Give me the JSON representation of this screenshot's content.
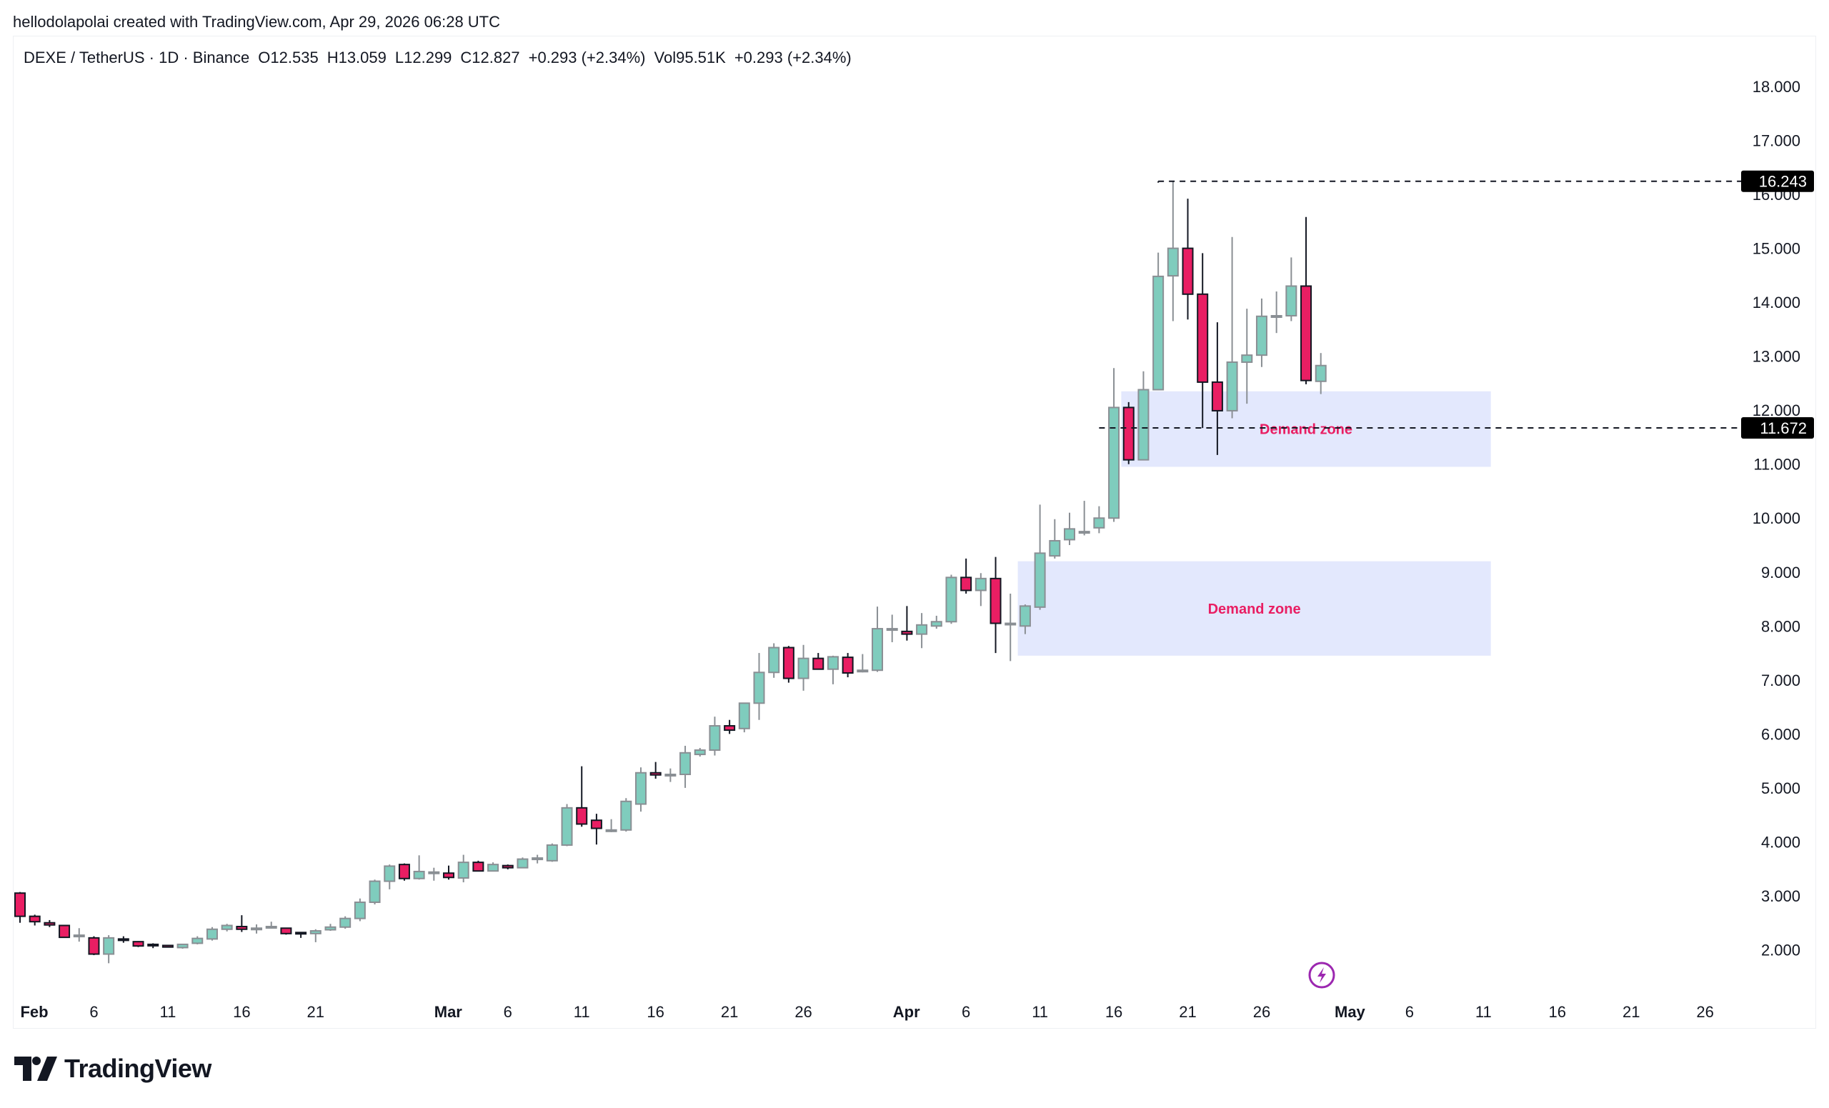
{
  "attribution": "hellodolapolai created with TradingView.com, Apr 29, 2026 06:28 UTC",
  "legend": {
    "symbol": "DEXE / TetherUS · 1D · Binance",
    "open": "O12.535",
    "high": "H13.059",
    "low": "L12.299",
    "close": "C12.827",
    "change": "+0.293 (+2.34%)",
    "volume": "Vol95.51K",
    "volume_change": "+0.293 (+2.34%)"
  },
  "colors": {
    "up": "#7fccbd",
    "up_border": "#8a8f94",
    "down": "#e91e63",
    "down_border": "#131722",
    "zone_fill": "#e3e8fd",
    "zone_text": "#e91e63",
    "event_icon": "#9c27b0"
  },
  "logo": {
    "text": "TradingView"
  },
  "chart_data": {
    "type": "candlestick",
    "title": "DEXE / TetherUS · 1D · Binance",
    "xlabel": "",
    "ylabel": "",
    "ylim": [
      1.0,
      18.8
    ],
    "y_ticks": [
      "18.000",
      "17.000",
      "16.000",
      "15.000",
      "14.000",
      "13.000",
      "12.000",
      "11.000",
      "10.000",
      "9.000",
      "8.000",
      "7.000",
      "6.000",
      "5.000",
      "4.000",
      "3.000",
      "2.000"
    ],
    "x_ticks": [
      {
        "label": "Feb",
        "day": 0,
        "major": true
      },
      {
        "label": "6",
        "day": 5
      },
      {
        "label": "11",
        "day": 10
      },
      {
        "label": "16",
        "day": 15
      },
      {
        "label": "21",
        "day": 20
      },
      {
        "label": "Mar",
        "day": 28,
        "major": true
      },
      {
        "label": "6",
        "day": 33
      },
      {
        "label": "11",
        "day": 38
      },
      {
        "label": "16",
        "day": 43
      },
      {
        "label": "21",
        "day": 48
      },
      {
        "label": "26",
        "day": 53
      },
      {
        "label": "Apr",
        "day": 59,
        "major": true
      },
      {
        "label": "6",
        "day": 64
      },
      {
        "label": "11",
        "day": 69
      },
      {
        "label": "16",
        "day": 74
      },
      {
        "label": "21",
        "day": 79
      },
      {
        "label": "26",
        "day": 84
      },
      {
        "label": "May",
        "day": 89,
        "major": true
      },
      {
        "label": "6",
        "day": 94
      },
      {
        "label": "11",
        "day": 99
      },
      {
        "label": "16",
        "day": 104
      },
      {
        "label": "21",
        "day": 109
      },
      {
        "label": "26",
        "day": 114
      }
    ],
    "price_lines": [
      {
        "value": 16.243,
        "label": "16.243",
        "start_day": 77
      },
      {
        "value": 11.672,
        "label": "11.672",
        "start_day": 73
      }
    ],
    "zones": [
      {
        "label": "Demand zone",
        "top": 12.35,
        "bottom": 10.95,
        "start_day": 74.5,
        "end_day": 99.5
      },
      {
        "label": "Demand zone",
        "top": 9.2,
        "bottom": 7.45,
        "start_day": 67.5,
        "end_day": 99.5
      }
    ],
    "candles": [
      {
        "o": 3.05,
        "h": 3.07,
        "l": 2.5,
        "c": 2.62
      },
      {
        "o": 2.62,
        "h": 2.65,
        "l": 2.45,
        "c": 2.52
      },
      {
        "o": 2.5,
        "h": 2.55,
        "l": 2.42,
        "c": 2.46
      },
      {
        "o": 2.45,
        "h": 2.46,
        "l": 2.22,
        "c": 2.23
      },
      {
        "o": 2.27,
        "h": 2.4,
        "l": 2.15,
        "c": 2.27
      },
      {
        "o": 2.22,
        "h": 2.25,
        "l": 1.9,
        "c": 1.92
      },
      {
        "o": 1.92,
        "h": 2.27,
        "l": 1.75,
        "c": 2.22
      },
      {
        "o": 2.2,
        "h": 2.25,
        "l": 2.13,
        "c": 2.18
      },
      {
        "o": 2.15,
        "h": 2.16,
        "l": 2.05,
        "c": 2.07
      },
      {
        "o": 2.1,
        "h": 2.12,
        "l": 2.03,
        "c": 2.09
      },
      {
        "o": 2.08,
        "h": 2.09,
        "l": 2.04,
        "c": 2.05
      },
      {
        "o": 2.04,
        "h": 2.1,
        "l": 2.02,
        "c": 2.1
      },
      {
        "o": 2.12,
        "h": 2.25,
        "l": 2.1,
        "c": 2.21
      },
      {
        "o": 2.2,
        "h": 2.42,
        "l": 2.17,
        "c": 2.38
      },
      {
        "o": 2.38,
        "h": 2.48,
        "l": 2.34,
        "c": 2.45
      },
      {
        "o": 2.43,
        "h": 2.64,
        "l": 2.33,
        "c": 2.38
      },
      {
        "o": 2.4,
        "h": 2.47,
        "l": 2.3,
        "c": 2.4
      },
      {
        "o": 2.42,
        "h": 2.52,
        "l": 2.39,
        "c": 2.43
      },
      {
        "o": 2.4,
        "h": 2.41,
        "l": 2.28,
        "c": 2.3
      },
      {
        "o": 2.32,
        "h": 2.33,
        "l": 2.22,
        "c": 2.31
      },
      {
        "o": 2.3,
        "h": 2.38,
        "l": 2.14,
        "c": 2.35
      },
      {
        "o": 2.37,
        "h": 2.48,
        "l": 2.35,
        "c": 2.42
      },
      {
        "o": 2.42,
        "h": 2.62,
        "l": 2.39,
        "c": 2.58
      },
      {
        "o": 2.58,
        "h": 2.95,
        "l": 2.53,
        "c": 2.88
      },
      {
        "o": 2.88,
        "h": 3.3,
        "l": 2.84,
        "c": 3.27
      },
      {
        "o": 3.27,
        "h": 3.58,
        "l": 3.12,
        "c": 3.55
      },
      {
        "o": 3.58,
        "h": 3.6,
        "l": 3.28,
        "c": 3.32
      },
      {
        "o": 3.32,
        "h": 3.75,
        "l": 3.3,
        "c": 3.45
      },
      {
        "o": 3.43,
        "h": 3.52,
        "l": 3.28,
        "c": 3.44
      },
      {
        "o": 3.42,
        "h": 3.56,
        "l": 3.3,
        "c": 3.34
      },
      {
        "o": 3.33,
        "h": 3.76,
        "l": 3.25,
        "c": 3.62
      },
      {
        "o": 3.62,
        "h": 3.65,
        "l": 3.46,
        "c": 3.46
      },
      {
        "o": 3.46,
        "h": 3.62,
        "l": 3.45,
        "c": 3.58
      },
      {
        "o": 3.56,
        "h": 3.58,
        "l": 3.49,
        "c": 3.52
      },
      {
        "o": 3.52,
        "h": 3.71,
        "l": 3.51,
        "c": 3.68
      },
      {
        "o": 3.7,
        "h": 3.76,
        "l": 3.6,
        "c": 3.7
      },
      {
        "o": 3.65,
        "h": 3.97,
        "l": 3.63,
        "c": 3.94
      },
      {
        "o": 3.94,
        "h": 4.7,
        "l": 3.92,
        "c": 4.63
      },
      {
        "o": 4.63,
        "h": 5.4,
        "l": 4.28,
        "c": 4.33
      },
      {
        "o": 4.4,
        "h": 4.52,
        "l": 3.95,
        "c": 4.25
      },
      {
        "o": 4.21,
        "h": 4.42,
        "l": 4.18,
        "c": 4.22
      },
      {
        "o": 4.22,
        "h": 4.81,
        "l": 4.19,
        "c": 4.75
      },
      {
        "o": 4.7,
        "h": 5.38,
        "l": 4.56,
        "c": 5.28
      },
      {
        "o": 5.28,
        "h": 5.48,
        "l": 5.17,
        "c": 5.24
      },
      {
        "o": 5.25,
        "h": 5.36,
        "l": 5.11,
        "c": 5.25
      },
      {
        "o": 5.25,
        "h": 5.78,
        "l": 5.0,
        "c": 5.65
      },
      {
        "o": 5.62,
        "h": 5.74,
        "l": 5.58,
        "c": 5.7
      },
      {
        "o": 5.7,
        "h": 6.32,
        "l": 5.6,
        "c": 6.15
      },
      {
        "o": 6.15,
        "h": 6.26,
        "l": 6.0,
        "c": 6.07
      },
      {
        "o": 6.1,
        "h": 6.56,
        "l": 6.03,
        "c": 6.57
      },
      {
        "o": 6.57,
        "h": 7.5,
        "l": 6.26,
        "c": 7.14
      },
      {
        "o": 7.14,
        "h": 7.68,
        "l": 7.04,
        "c": 7.6
      },
      {
        "o": 7.6,
        "h": 7.63,
        "l": 6.95,
        "c": 7.03
      },
      {
        "o": 7.03,
        "h": 7.65,
        "l": 6.8,
        "c": 7.4
      },
      {
        "o": 7.4,
        "h": 7.5,
        "l": 7.2,
        "c": 7.2
      },
      {
        "o": 7.2,
        "h": 7.45,
        "l": 6.92,
        "c": 7.43
      },
      {
        "o": 7.42,
        "h": 7.5,
        "l": 7.05,
        "c": 7.13
      },
      {
        "o": 7.18,
        "h": 7.48,
        "l": 7.14,
        "c": 7.18
      },
      {
        "o": 7.18,
        "h": 8.36,
        "l": 7.15,
        "c": 7.95
      },
      {
        "o": 7.95,
        "h": 8.21,
        "l": 7.7,
        "c": 7.95
      },
      {
        "o": 7.9,
        "h": 8.37,
        "l": 7.73,
        "c": 7.85
      },
      {
        "o": 7.85,
        "h": 8.24,
        "l": 7.59,
        "c": 8.02
      },
      {
        "o": 8.0,
        "h": 8.19,
        "l": 7.95,
        "c": 8.08
      },
      {
        "o": 8.08,
        "h": 8.95,
        "l": 8.04,
        "c": 8.9
      },
      {
        "o": 8.9,
        "h": 9.25,
        "l": 8.6,
        "c": 8.66
      },
      {
        "o": 8.66,
        "h": 8.98,
        "l": 8.37,
        "c": 8.88
      },
      {
        "o": 8.88,
        "h": 9.28,
        "l": 7.5,
        "c": 8.05
      },
      {
        "o": 8.05,
        "h": 8.6,
        "l": 7.35,
        "c": 8.05
      },
      {
        "o": 8.0,
        "h": 8.4,
        "l": 7.85,
        "c": 8.37
      },
      {
        "o": 8.35,
        "h": 10.25,
        "l": 8.3,
        "c": 9.35
      },
      {
        "o": 9.3,
        "h": 9.98,
        "l": 9.25,
        "c": 9.58
      },
      {
        "o": 9.6,
        "h": 10.1,
        "l": 9.5,
        "c": 9.8
      },
      {
        "o": 9.75,
        "h": 10.32,
        "l": 9.68,
        "c": 9.75
      },
      {
        "o": 9.82,
        "h": 10.22,
        "l": 9.72,
        "c": 10.0
      },
      {
        "o": 10.0,
        "h": 12.78,
        "l": 9.93,
        "c": 12.05
      },
      {
        "o": 12.05,
        "h": 12.15,
        "l": 11.0,
        "c": 11.08
      },
      {
        "o": 11.08,
        "h": 12.72,
        "l": 11.07,
        "c": 12.38
      },
      {
        "o": 12.38,
        "h": 14.92,
        "l": 12.37,
        "c": 14.48
      },
      {
        "o": 14.49,
        "h": 16.24,
        "l": 13.65,
        "c": 15.0
      },
      {
        "o": 15.0,
        "h": 15.92,
        "l": 13.68,
        "c": 14.15
      },
      {
        "o": 14.15,
        "h": 14.91,
        "l": 11.67,
        "c": 12.52
      },
      {
        "o": 12.52,
        "h": 13.63,
        "l": 11.17,
        "c": 11.99
      },
      {
        "o": 11.99,
        "h": 15.21,
        "l": 11.85,
        "c": 12.89
      },
      {
        "o": 12.89,
        "h": 13.88,
        "l": 12.12,
        "c": 13.02
      },
      {
        "o": 13.02,
        "h": 14.07,
        "l": 12.8,
        "c": 13.74
      },
      {
        "o": 13.74,
        "h": 14.2,
        "l": 13.43,
        "c": 13.75
      },
      {
        "o": 13.75,
        "h": 14.83,
        "l": 13.65,
        "c": 14.3
      },
      {
        "o": 14.3,
        "h": 15.58,
        "l": 12.48,
        "c": 12.55
      },
      {
        "o": 12.535,
        "h": 13.059,
        "l": 12.299,
        "c": 12.827
      }
    ]
  }
}
